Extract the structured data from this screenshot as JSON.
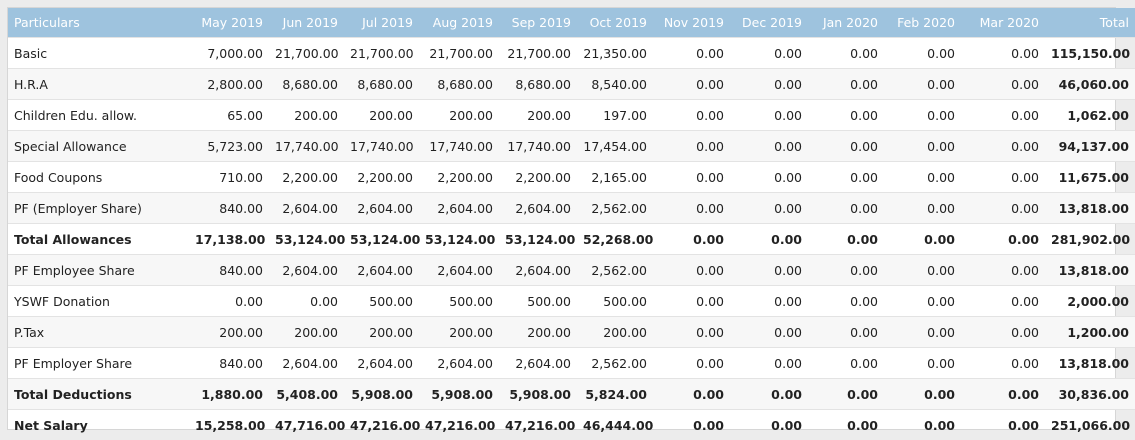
{
  "columns": [
    "Particulars",
    "May 2019",
    "Jun 2019",
    "Jul 2019",
    "Aug 2019",
    "Sep 2019",
    "Oct 2019",
    "Nov 2019",
    "Dec 2019",
    "Jan 2020",
    "Feb 2020",
    "Mar 2020",
    "Total"
  ],
  "rows": [
    {
      "label": "Basic",
      "bold": false,
      "values": [
        "7,000.00",
        "21,700.00",
        "21,700.00",
        "21,700.00",
        "21,700.00",
        "21,350.00",
        "0.00",
        "0.00",
        "0.00",
        "0.00",
        "0.00",
        "115,150.00"
      ]
    },
    {
      "label": "H.R.A",
      "bold": false,
      "values": [
        "2,800.00",
        "8,680.00",
        "8,680.00",
        "8,680.00",
        "8,680.00",
        "8,540.00",
        "0.00",
        "0.00",
        "0.00",
        "0.00",
        "0.00",
        "46,060.00"
      ]
    },
    {
      "label": "Children Edu. allow.",
      "bold": false,
      "values": [
        "65.00",
        "200.00",
        "200.00",
        "200.00",
        "200.00",
        "197.00",
        "0.00",
        "0.00",
        "0.00",
        "0.00",
        "0.00",
        "1,062.00"
      ]
    },
    {
      "label": "Special Allowance",
      "bold": false,
      "values": [
        "5,723.00",
        "17,740.00",
        "17,740.00",
        "17,740.00",
        "17,740.00",
        "17,454.00",
        "0.00",
        "0.00",
        "0.00",
        "0.00",
        "0.00",
        "94,137.00"
      ]
    },
    {
      "label": "Food Coupons",
      "bold": false,
      "values": [
        "710.00",
        "2,200.00",
        "2,200.00",
        "2,200.00",
        "2,200.00",
        "2,165.00",
        "0.00",
        "0.00",
        "0.00",
        "0.00",
        "0.00",
        "11,675.00"
      ]
    },
    {
      "label": "PF (Employer Share)",
      "bold": false,
      "values": [
        "840.00",
        "2,604.00",
        "2,604.00",
        "2,604.00",
        "2,604.00",
        "2,562.00",
        "0.00",
        "0.00",
        "0.00",
        "0.00",
        "0.00",
        "13,818.00"
      ]
    },
    {
      "label": "Total Allowances",
      "bold": true,
      "values": [
        "17,138.00",
        "53,124.00",
        "53,124.00",
        "53,124.00",
        "53,124.00",
        "52,268.00",
        "0.00",
        "0.00",
        "0.00",
        "0.00",
        "0.00",
        "281,902.00"
      ]
    },
    {
      "label": "PF Employee Share",
      "bold": false,
      "values": [
        "840.00",
        "2,604.00",
        "2,604.00",
        "2,604.00",
        "2,604.00",
        "2,562.00",
        "0.00",
        "0.00",
        "0.00",
        "0.00",
        "0.00",
        "13,818.00"
      ]
    },
    {
      "label": "YSWF Donation",
      "bold": false,
      "values": [
        "0.00",
        "0.00",
        "500.00",
        "500.00",
        "500.00",
        "500.00",
        "0.00",
        "0.00",
        "0.00",
        "0.00",
        "0.00",
        "2,000.00"
      ]
    },
    {
      "label": "P.Tax",
      "bold": false,
      "values": [
        "200.00",
        "200.00",
        "200.00",
        "200.00",
        "200.00",
        "200.00",
        "0.00",
        "0.00",
        "0.00",
        "0.00",
        "0.00",
        "1,200.00"
      ]
    },
    {
      "label": "PF Employer Share",
      "bold": false,
      "values": [
        "840.00",
        "2,604.00",
        "2,604.00",
        "2,604.00",
        "2,604.00",
        "2,562.00",
        "0.00",
        "0.00",
        "0.00",
        "0.00",
        "0.00",
        "13,818.00"
      ]
    },
    {
      "label": "Total Deductions",
      "bold": true,
      "values": [
        "1,880.00",
        "5,408.00",
        "5,908.00",
        "5,908.00",
        "5,908.00",
        "5,824.00",
        "0.00",
        "0.00",
        "0.00",
        "0.00",
        "0.00",
        "30,836.00"
      ]
    },
    {
      "label": "Net Salary",
      "bold": true,
      "values": [
        "15,258.00",
        "47,716.00",
        "47,216.00",
        "47,216.00",
        "47,216.00",
        "46,444.00",
        "0.00",
        "0.00",
        "0.00",
        "0.00",
        "0.00",
        "251,066.00"
      ]
    }
  ],
  "colors": {
    "header_bg": "#9ec3de",
    "header_text": "#ffffff",
    "stripe": "#f7f7f7",
    "border": "#e3e3e3"
  }
}
